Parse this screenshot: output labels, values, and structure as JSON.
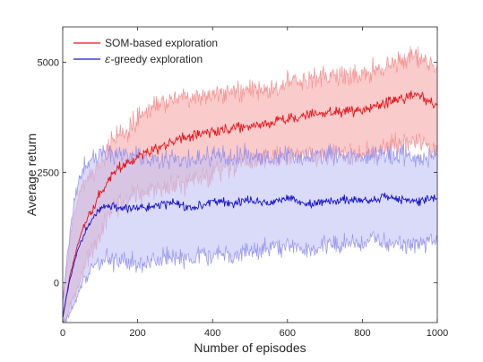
{
  "chart_data": {
    "type": "line",
    "title": "",
    "xlabel": "Number of episodes",
    "ylabel": "Average return",
    "xlim": [
      0,
      1000
    ],
    "ylim": [
      -900,
      5800
    ],
    "x_ticks": [
      0,
      200,
      400,
      600,
      800,
      1000
    ],
    "y_ticks": [
      0,
      2500,
      5000
    ],
    "x_tick_labels": [
      "0",
      "200",
      "400",
      "600",
      "800",
      "1000"
    ],
    "y_tick_labels": [
      "0",
      "2500",
      "5000"
    ],
    "grid": false,
    "legend_position": "top-left",
    "colors": {
      "som_line": "#e8141a",
      "som_band": "#f7b5b5",
      "som_band_edge": "#f48a8a",
      "greedy_line": "#1414cc",
      "greedy_band": "#c2c2f5",
      "greedy_band_edge": "#8c8cf0",
      "axis": "#262626"
    },
    "series": [
      {
        "name": "SOM-based exploration",
        "legend_label": "SOM-based exploration",
        "color": "#e8141a",
        "x": [
          0,
          10,
          20,
          30,
          40,
          50,
          60,
          80,
          100,
          120,
          150,
          200,
          250,
          300,
          350,
          400,
          450,
          500,
          550,
          600,
          650,
          700,
          750,
          800,
          850,
          900,
          950,
          1000
        ],
        "mean": [
          -800,
          -300,
          200,
          550,
          850,
          1100,
          1350,
          1700,
          2000,
          2300,
          2600,
          2850,
          3050,
          3200,
          3350,
          3400,
          3500,
          3550,
          3600,
          3700,
          3800,
          3850,
          3900,
          3900,
          4050,
          4150,
          4300,
          4000
        ],
        "upper": [
          -400,
          300,
          1000,
          1500,
          1900,
          2100,
          2300,
          2500,
          2700,
          3000,
          3400,
          3700,
          4100,
          4200,
          4250,
          4300,
          4400,
          4400,
          4300,
          4500,
          4600,
          4700,
          4700,
          4700,
          4900,
          5000,
          5100,
          4800
        ],
        "lower": [
          -900,
          -800,
          -500,
          -350,
          -100,
          200,
          450,
          750,
          1100,
          1500,
          1800,
          2000,
          2100,
          2200,
          2350,
          2450,
          2600,
          2700,
          2800,
          2850,
          2900,
          2850,
          2900,
          2850,
          3050,
          3200,
          3300,
          3000
        ]
      },
      {
        "name": "ε-greedy exploration",
        "legend_label_math": "ε",
        "legend_label": "-greedy exploration",
        "color": "#1414cc",
        "x": [
          0,
          10,
          20,
          30,
          40,
          50,
          60,
          80,
          100,
          120,
          150,
          200,
          250,
          300,
          350,
          400,
          450,
          500,
          550,
          600,
          650,
          700,
          750,
          800,
          850,
          900,
          950,
          1000
        ],
        "mean": [
          -800,
          -300,
          100,
          450,
          750,
          950,
          1150,
          1450,
          1700,
          1750,
          1700,
          1700,
          1750,
          1800,
          1700,
          1850,
          1800,
          1900,
          1800,
          1950,
          1750,
          1850,
          1900,
          1850,
          1950,
          1900,
          1850,
          1950
        ],
        "upper": [
          -400,
          400,
          1200,
          1800,
          2200,
          2500,
          2700,
          2800,
          2900,
          2950,
          2900,
          2850,
          2800,
          2800,
          2750,
          2900,
          2850,
          2900,
          2800,
          2950,
          2800,
          2900,
          2900,
          2850,
          2950,
          2900,
          2800,
          2900
        ],
        "lower": [
          -900,
          -850,
          -700,
          -500,
          -300,
          -100,
          100,
          300,
          500,
          550,
          500,
          450,
          500,
          600,
          550,
          650,
          650,
          750,
          750,
          850,
          700,
          800,
          850,
          850,
          950,
          900,
          850,
          950
        ]
      }
    ]
  }
}
